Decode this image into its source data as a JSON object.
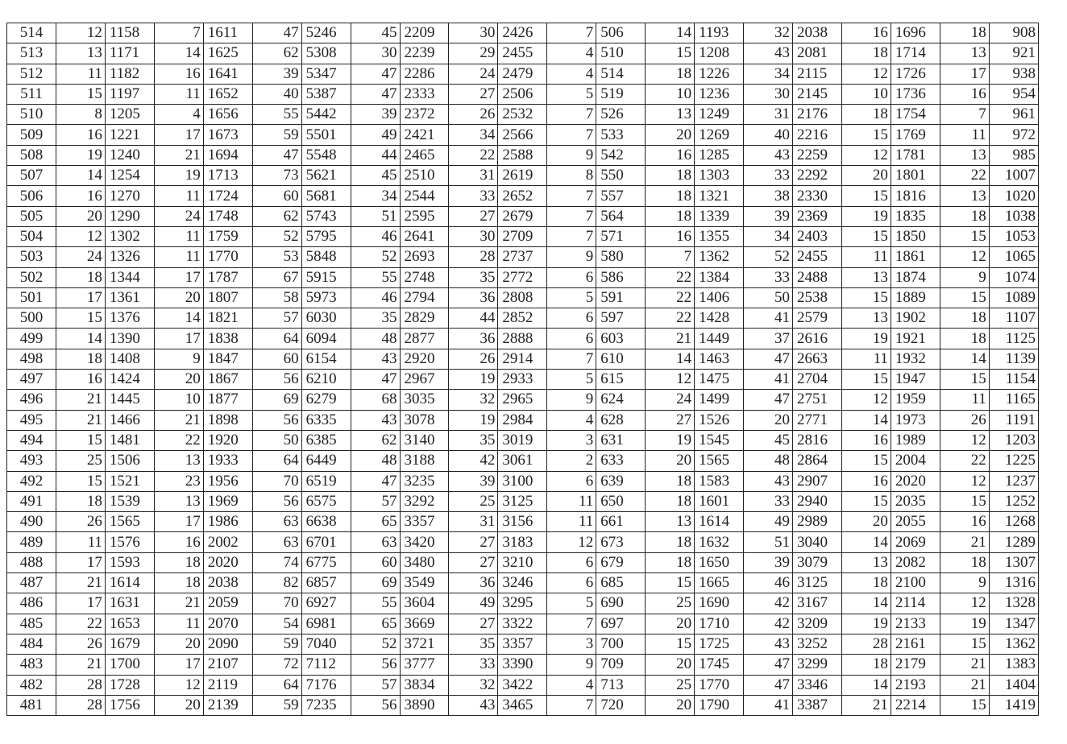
{
  "table": {
    "rows": [
      [
        "514",
        "12",
        "1158",
        "7",
        "1611",
        "47",
        "5246",
        "45",
        "2209",
        "30",
        "2426",
        "7",
        "506",
        "14",
        "1193",
        "32",
        "2038",
        "16",
        "1696",
        "18",
        "908"
      ],
      [
        "513",
        "13",
        "1171",
        "14",
        "1625",
        "62",
        "5308",
        "30",
        "2239",
        "29",
        "2455",
        "4",
        "510",
        "15",
        "1208",
        "43",
        "2081",
        "18",
        "1714",
        "13",
        "921"
      ],
      [
        "512",
        "11",
        "1182",
        "16",
        "1641",
        "39",
        "5347",
        "47",
        "2286",
        "24",
        "2479",
        "4",
        "514",
        "18",
        "1226",
        "34",
        "2115",
        "12",
        "1726",
        "17",
        "938"
      ],
      [
        "511",
        "15",
        "1197",
        "11",
        "1652",
        "40",
        "5387",
        "47",
        "2333",
        "27",
        "2506",
        "5",
        "519",
        "10",
        "1236",
        "30",
        "2145",
        "10",
        "1736",
        "16",
        "954"
      ],
      [
        "510",
        "8",
        "1205",
        "4",
        "1656",
        "55",
        "5442",
        "39",
        "2372",
        "26",
        "2532",
        "7",
        "526",
        "13",
        "1249",
        "31",
        "2176",
        "18",
        "1754",
        "7",
        "961"
      ],
      [
        "509",
        "16",
        "1221",
        "17",
        "1673",
        "59",
        "5501",
        "49",
        "2421",
        "34",
        "2566",
        "7",
        "533",
        "20",
        "1269",
        "40",
        "2216",
        "15",
        "1769",
        "11",
        "972"
      ],
      [
        "508",
        "19",
        "1240",
        "21",
        "1694",
        "47",
        "5548",
        "44",
        "2465",
        "22",
        "2588",
        "9",
        "542",
        "16",
        "1285",
        "43",
        "2259",
        "12",
        "1781",
        "13",
        "985"
      ],
      [
        "507",
        "14",
        "1254",
        "19",
        "1713",
        "73",
        "5621",
        "45",
        "2510",
        "31",
        "2619",
        "8",
        "550",
        "18",
        "1303",
        "33",
        "2292",
        "20",
        "1801",
        "22",
        "1007"
      ],
      [
        "506",
        "16",
        "1270",
        "11",
        "1724",
        "60",
        "5681",
        "34",
        "2544",
        "33",
        "2652",
        "7",
        "557",
        "18",
        "1321",
        "38",
        "2330",
        "15",
        "1816",
        "13",
        "1020"
      ],
      [
        "505",
        "20",
        "1290",
        "24",
        "1748",
        "62",
        "5743",
        "51",
        "2595",
        "27",
        "2679",
        "7",
        "564",
        "18",
        "1339",
        "39",
        "2369",
        "19",
        "1835",
        "18",
        "1038"
      ],
      [
        "504",
        "12",
        "1302",
        "11",
        "1759",
        "52",
        "5795",
        "46",
        "2641",
        "30",
        "2709",
        "7",
        "571",
        "16",
        "1355",
        "34",
        "2403",
        "15",
        "1850",
        "15",
        "1053"
      ],
      [
        "503",
        "24",
        "1326",
        "11",
        "1770",
        "53",
        "5848",
        "52",
        "2693",
        "28",
        "2737",
        "9",
        "580",
        "7",
        "1362",
        "52",
        "2455",
        "11",
        "1861",
        "12",
        "1065"
      ],
      [
        "502",
        "18",
        "1344",
        "17",
        "1787",
        "67",
        "5915",
        "55",
        "2748",
        "35",
        "2772",
        "6",
        "586",
        "22",
        "1384",
        "33",
        "2488",
        "13",
        "1874",
        "9",
        "1074"
      ],
      [
        "501",
        "17",
        "1361",
        "20",
        "1807",
        "58",
        "5973",
        "46",
        "2794",
        "36",
        "2808",
        "5",
        "591",
        "22",
        "1406",
        "50",
        "2538",
        "15",
        "1889",
        "15",
        "1089"
      ],
      [
        "500",
        "15",
        "1376",
        "14",
        "1821",
        "57",
        "6030",
        "35",
        "2829",
        "44",
        "2852",
        "6",
        "597",
        "22",
        "1428",
        "41",
        "2579",
        "13",
        "1902",
        "18",
        "1107"
      ],
      [
        "499",
        "14",
        "1390",
        "17",
        "1838",
        "64",
        "6094",
        "48",
        "2877",
        "36",
        "2888",
        "6",
        "603",
        "21",
        "1449",
        "37",
        "2616",
        "19",
        "1921",
        "18",
        "1125"
      ],
      [
        "498",
        "18",
        "1408",
        "9",
        "1847",
        "60",
        "6154",
        "43",
        "2920",
        "26",
        "2914",
        "7",
        "610",
        "14",
        "1463",
        "47",
        "2663",
        "11",
        "1932",
        "14",
        "1139"
      ],
      [
        "497",
        "16",
        "1424",
        "20",
        "1867",
        "56",
        "6210",
        "47",
        "2967",
        "19",
        "2933",
        "5",
        "615",
        "12",
        "1475",
        "41",
        "2704",
        "15",
        "1947",
        "15",
        "1154"
      ],
      [
        "496",
        "21",
        "1445",
        "10",
        "1877",
        "69",
        "6279",
        "68",
        "3035",
        "32",
        "2965",
        "9",
        "624",
        "24",
        "1499",
        "47",
        "2751",
        "12",
        "1959",
        "11",
        "1165"
      ],
      [
        "495",
        "21",
        "1466",
        "21",
        "1898",
        "56",
        "6335",
        "43",
        "3078",
        "19",
        "2984",
        "4",
        "628",
        "27",
        "1526",
        "20",
        "2771",
        "14",
        "1973",
        "26",
        "1191"
      ],
      [
        "494",
        "15",
        "1481",
        "22",
        "1920",
        "50",
        "6385",
        "62",
        "3140",
        "35",
        "3019",
        "3",
        "631",
        "19",
        "1545",
        "45",
        "2816",
        "16",
        "1989",
        "12",
        "1203"
      ],
      [
        "493",
        "25",
        "1506",
        "13",
        "1933",
        "64",
        "6449",
        "48",
        "3188",
        "42",
        "3061",
        "2",
        "633",
        "20",
        "1565",
        "48",
        "2864",
        "15",
        "2004",
        "22",
        "1225"
      ],
      [
        "492",
        "15",
        "1521",
        "23",
        "1956",
        "70",
        "6519",
        "47",
        "3235",
        "39",
        "3100",
        "6",
        "639",
        "18",
        "1583",
        "43",
        "2907",
        "16",
        "2020",
        "12",
        "1237"
      ],
      [
        "491",
        "18",
        "1539",
        "13",
        "1969",
        "56",
        "6575",
        "57",
        "3292",
        "25",
        "3125",
        "11",
        "650",
        "18",
        "1601",
        "33",
        "2940",
        "15",
        "2035",
        "15",
        "1252"
      ],
      [
        "490",
        "26",
        "1565",
        "17",
        "1986",
        "63",
        "6638",
        "65",
        "3357",
        "31",
        "3156",
        "11",
        "661",
        "13",
        "1614",
        "49",
        "2989",
        "20",
        "2055",
        "16",
        "1268"
      ],
      [
        "489",
        "11",
        "1576",
        "16",
        "2002",
        "63",
        "6701",
        "63",
        "3420",
        "27",
        "3183",
        "12",
        "673",
        "18",
        "1632",
        "51",
        "3040",
        "14",
        "2069",
        "21",
        "1289"
      ],
      [
        "488",
        "17",
        "1593",
        "18",
        "2020",
        "74",
        "6775",
        "60",
        "3480",
        "27",
        "3210",
        "6",
        "679",
        "18",
        "1650",
        "39",
        "3079",
        "13",
        "2082",
        "18",
        "1307"
      ],
      [
        "487",
        "21",
        "1614",
        "18",
        "2038",
        "82",
        "6857",
        "69",
        "3549",
        "36",
        "3246",
        "6",
        "685",
        "15",
        "1665",
        "46",
        "3125",
        "18",
        "2100",
        "9",
        "1316"
      ],
      [
        "486",
        "17",
        "1631",
        "21",
        "2059",
        "70",
        "6927",
        "55",
        "3604",
        "49",
        "3295",
        "5",
        "690",
        "25",
        "1690",
        "42",
        "3167",
        "14",
        "2114",
        "12",
        "1328"
      ],
      [
        "485",
        "22",
        "1653",
        "11",
        "2070",
        "54",
        "6981",
        "65",
        "3669",
        "27",
        "3322",
        "7",
        "697",
        "20",
        "1710",
        "42",
        "3209",
        "19",
        "2133",
        "19",
        "1347"
      ],
      [
        "484",
        "26",
        "1679",
        "20",
        "2090",
        "59",
        "7040",
        "52",
        "3721",
        "35",
        "3357",
        "3",
        "700",
        "15",
        "1725",
        "43",
        "3252",
        "28",
        "2161",
        "15",
        "1362"
      ],
      [
        "483",
        "21",
        "1700",
        "17",
        "2107",
        "72",
        "7112",
        "56",
        "3777",
        "33",
        "3390",
        "9",
        "709",
        "20",
        "1745",
        "47",
        "3299",
        "18",
        "2179",
        "21",
        "1383"
      ],
      [
        "482",
        "28",
        "1728",
        "12",
        "2119",
        "64",
        "7176",
        "57",
        "3834",
        "32",
        "3422",
        "4",
        "713",
        "25",
        "1770",
        "47",
        "3346",
        "14",
        "2193",
        "21",
        "1404"
      ],
      [
        "481",
        "28",
        "1756",
        "20",
        "2139",
        "59",
        "7235",
        "56",
        "3890",
        "43",
        "3465",
        "7",
        "720",
        "20",
        "1790",
        "41",
        "3387",
        "21",
        "2214",
        "15",
        "1419"
      ]
    ]
  }
}
